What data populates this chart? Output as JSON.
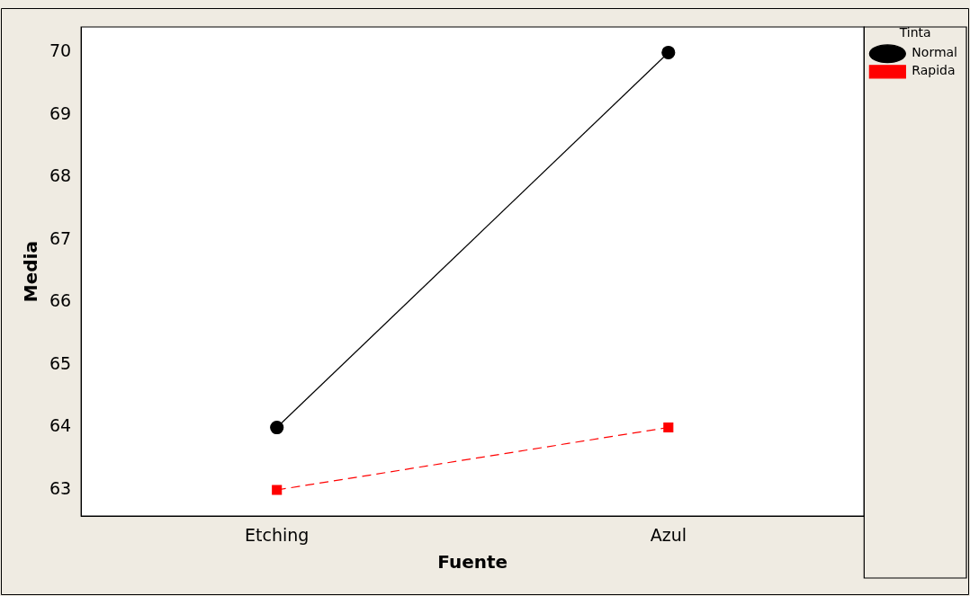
{
  "chart_data": {
    "type": "line",
    "xlabel": "Fuente",
    "ylabel": "Media",
    "legend_title": "Tinta",
    "categories": [
      "Etching",
      "Azul"
    ],
    "series": [
      {
        "name": "Normal",
        "color": "#000000",
        "values": [
          64,
          70
        ],
        "marker": "circle",
        "line_style": "solid"
      },
      {
        "name": "Rapida",
        "color": "#ff0000",
        "values": [
          63,
          64
        ],
        "marker": "square",
        "line_style": "dashed"
      }
    ],
    "ylim": [
      62.58,
      70.41
    ],
    "yticks": [
      63,
      64,
      65,
      66,
      67,
      68,
      69,
      70
    ],
    "grid": false,
    "legend": "top right"
  }
}
